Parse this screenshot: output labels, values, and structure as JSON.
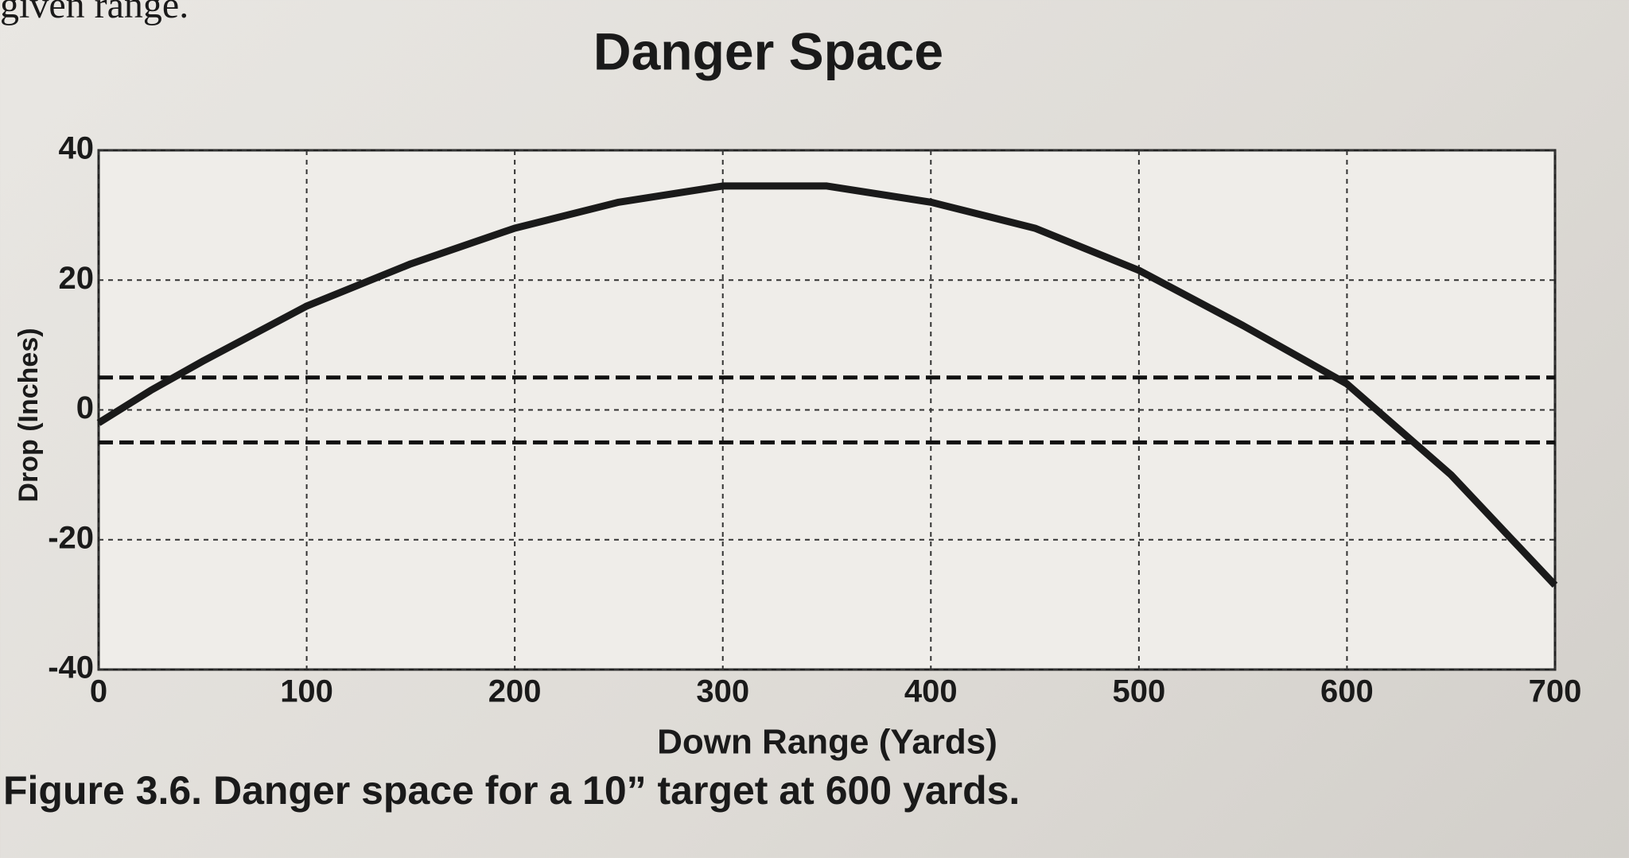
{
  "header_text": "given range.",
  "caption": "Figure 3.6. Danger space for a 10” target at 600 yards.",
  "chart_data": {
    "type": "line",
    "title": "Danger Space",
    "xlabel": "Down Range (Yards)",
    "ylabel": "Drop (Inches)",
    "x": [
      0,
      25,
      50,
      100,
      150,
      200,
      250,
      300,
      350,
      400,
      450,
      500,
      550,
      600,
      650,
      700
    ],
    "values": [
      -2,
      3,
      7.5,
      16,
      22.5,
      28,
      32,
      34.5,
      34.5,
      32,
      28,
      21.5,
      13,
      4,
      -10,
      -27
    ],
    "color": "#1a1a1a",
    "reference_lines": [
      5,
      -5
    ],
    "xlim": [
      0,
      700
    ],
    "xticks": [
      0,
      100,
      200,
      300,
      400,
      500,
      600,
      700
    ],
    "ylim": [
      -40,
      40
    ],
    "yticks": [
      -40,
      -20,
      0,
      20,
      40
    ],
    "grid": true
  }
}
